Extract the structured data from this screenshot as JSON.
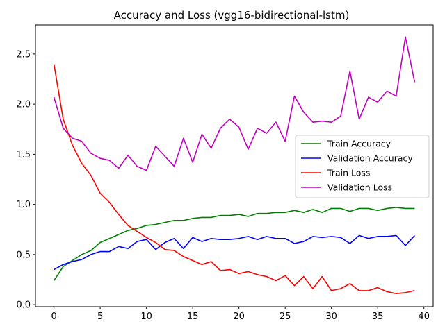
{
  "chart_data": {
    "type": "line",
    "title": "Accuracy and Loss (vgg16-bidirectional-lstm)",
    "xlabel": "",
    "ylabel": "",
    "xlim": [
      -2,
      41
    ],
    "ylim": [
      -0.02,
      2.79
    ],
    "xticks": [
      0,
      5,
      10,
      15,
      20,
      25,
      30,
      35,
      40
    ],
    "yticks": [
      0.0,
      0.5,
      1.0,
      1.5,
      2.0,
      2.5
    ],
    "ytick_labels": [
      "0.0",
      "0.5",
      "1.0",
      "1.5",
      "2.0",
      "2.5"
    ],
    "legend_position": "center-right",
    "grid": false,
    "x": [
      0,
      1,
      2,
      3,
      4,
      5,
      6,
      7,
      8,
      9,
      10,
      11,
      12,
      13,
      14,
      15,
      16,
      17,
      18,
      19,
      20,
      21,
      22,
      23,
      24,
      25,
      26,
      27,
      28,
      29,
      30,
      31,
      32,
      33,
      34,
      35,
      36,
      37,
      38,
      39
    ],
    "series": [
      {
        "name": "Train Accuracy",
        "color": "#008000",
        "values": [
          0.24,
          0.38,
          0.44,
          0.5,
          0.54,
          0.62,
          0.66,
          0.7,
          0.74,
          0.76,
          0.79,
          0.8,
          0.82,
          0.84,
          0.84,
          0.86,
          0.87,
          0.87,
          0.89,
          0.89,
          0.9,
          0.88,
          0.91,
          0.91,
          0.92,
          0.92,
          0.94,
          0.92,
          0.95,
          0.92,
          0.96,
          0.96,
          0.93,
          0.96,
          0.96,
          0.94,
          0.96,
          0.97,
          0.96,
          0.96
        ]
      },
      {
        "name": "Validation Accuracy",
        "color": "#0000ff",
        "values": [
          0.35,
          0.4,
          0.43,
          0.45,
          0.5,
          0.53,
          0.53,
          0.58,
          0.56,
          0.63,
          0.65,
          0.55,
          0.62,
          0.66,
          0.56,
          0.67,
          0.63,
          0.66,
          0.65,
          0.65,
          0.66,
          0.68,
          0.65,
          0.68,
          0.66,
          0.66,
          0.61,
          0.63,
          0.68,
          0.67,
          0.68,
          0.67,
          0.61,
          0.69,
          0.66,
          0.68,
          0.68,
          0.69,
          0.59,
          0.69
        ]
      },
      {
        "name": "Train Loss",
        "color": "#ff0000",
        "values": [
          2.4,
          1.85,
          1.59,
          1.41,
          1.29,
          1.11,
          1.02,
          0.9,
          0.79,
          0.73,
          0.67,
          0.62,
          0.55,
          0.54,
          0.48,
          0.44,
          0.4,
          0.43,
          0.34,
          0.35,
          0.31,
          0.33,
          0.3,
          0.28,
          0.24,
          0.29,
          0.19,
          0.28,
          0.16,
          0.28,
          0.14,
          0.16,
          0.21,
          0.14,
          0.14,
          0.17,
          0.13,
          0.11,
          0.12,
          0.14
        ]
      },
      {
        "name": "Validation Loss",
        "color": "#bf00bf",
        "values": [
          2.07,
          1.76,
          1.66,
          1.63,
          1.51,
          1.46,
          1.44,
          1.36,
          1.49,
          1.38,
          1.34,
          1.58,
          1.48,
          1.38,
          1.66,
          1.42,
          1.7,
          1.56,
          1.76,
          1.85,
          1.77,
          1.55,
          1.76,
          1.71,
          1.82,
          1.63,
          2.08,
          1.92,
          1.82,
          1.83,
          1.82,
          1.88,
          2.33,
          1.85,
          2.07,
          2.02,
          2.13,
          2.08,
          2.67,
          2.22
        ]
      }
    ]
  }
}
